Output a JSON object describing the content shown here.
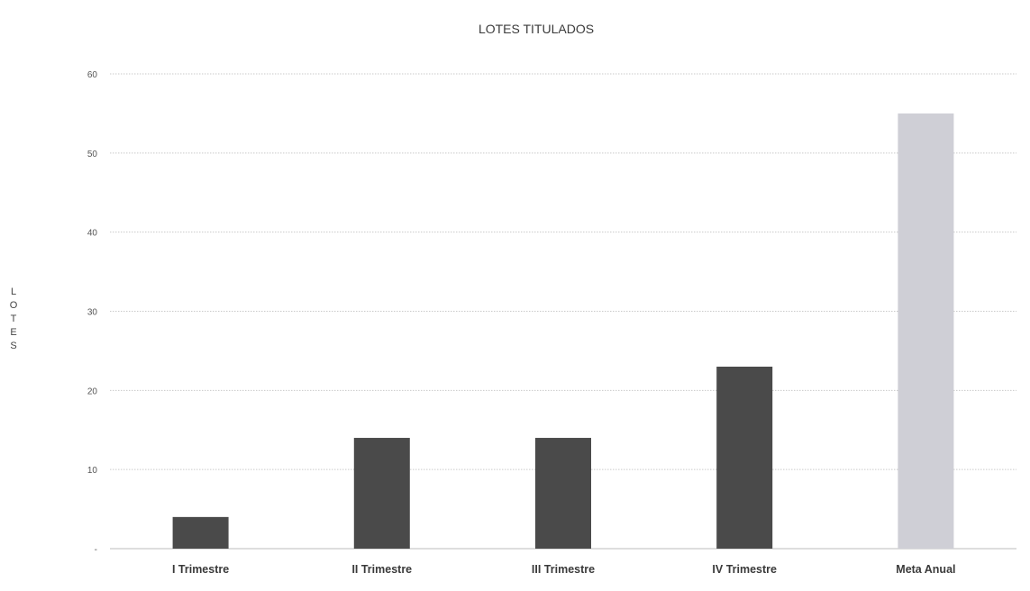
{
  "chart_data": {
    "type": "bar",
    "title": "LOTES TITULADOS",
    "ylabel": "LOTES",
    "xlabel": "",
    "categories": [
      "I Trimestre",
      "II Trimestre",
      "III Trimestre",
      "IV Trimestre",
      "Meta Anual"
    ],
    "values": [
      4,
      14,
      14,
      23,
      55
    ],
    "ylim": [
      0,
      60
    ],
    "yticks": [
      0,
      10,
      20,
      30,
      40,
      50,
      60
    ],
    "ytick_labels": [
      "-",
      "10",
      "20",
      "30",
      "40",
      "50",
      "60"
    ],
    "grid": true,
    "legend": "none",
    "colors": {
      "quarter_bar": "#4a4a4a",
      "annual_bar": "#cfcfd6",
      "grid": "#c9c9c9"
    }
  }
}
